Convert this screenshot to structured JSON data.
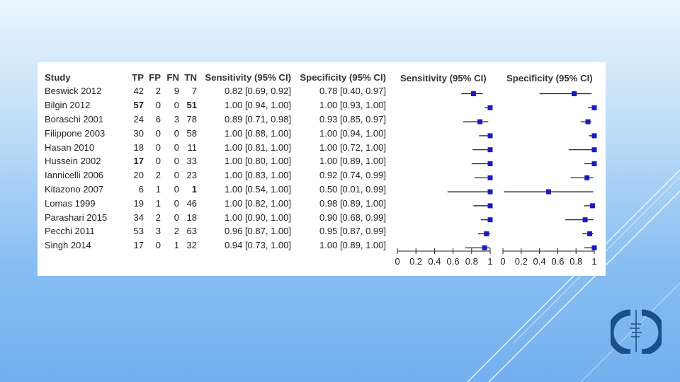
{
  "chart_data": {
    "type": "table",
    "subtype": "paired forest plot",
    "columns": [
      "Study",
      "TP",
      "FP",
      "FN",
      "TN",
      "Sensitivity (95% CI)",
      "Specificity (95% CI)"
    ],
    "plot_headers": [
      "Sensitivity (95% CI)",
      "Specificity (95% CI)"
    ],
    "axis_ticks": [
      "0",
      "0.2",
      "0.4",
      "0.6",
      "0.8",
      "1"
    ],
    "xlim": [
      0,
      1
    ],
    "rows": [
      {
        "study": "Beswick 2012",
        "tp": "42",
        "fp": "2",
        "fn": "9",
        "tn": "7",
        "sens_text": "0.82 [0.69, 0.92]",
        "spec_text": "0.78 [0.40, 0.97]",
        "sens": [
          0.82,
          0.69,
          0.92
        ],
        "spec": [
          0.78,
          0.4,
          0.97
        ]
      },
      {
        "study": "Bilgin 2012",
        "tp": "57",
        "fp": "0",
        "fn": "0",
        "tn": "51",
        "sens_text": "1.00 [0.94, 1.00]",
        "spec_text": "1.00 [0.93, 1.00]",
        "sens": [
          1.0,
          0.94,
          1.0
        ],
        "spec": [
          1.0,
          0.93,
          1.0
        ]
      },
      {
        "study": "Boraschi 2001",
        "tp": "24",
        "fp": "6",
        "fn": "3",
        "tn": "78",
        "sens_text": "0.89 [0.71, 0.98]",
        "spec_text": "0.93 [0.85, 0.97]",
        "sens": [
          0.89,
          0.71,
          0.98
        ],
        "spec": [
          0.93,
          0.85,
          0.97
        ]
      },
      {
        "study": "Filippone 2003",
        "tp": "30",
        "fp": "0",
        "fn": "0",
        "tn": "58",
        "sens_text": "1.00 [0.88, 1.00]",
        "spec_text": "1.00 [0.94, 1.00]",
        "sens": [
          1.0,
          0.88,
          1.0
        ],
        "spec": [
          1.0,
          0.94,
          1.0
        ]
      },
      {
        "study": "Hasan 2010",
        "tp": "18",
        "fp": "0",
        "fn": "0",
        "tn": "11",
        "sens_text": "1.00 [0.81, 1.00]",
        "spec_text": "1.00 [0.72, 1.00]",
        "sens": [
          1.0,
          0.81,
          1.0
        ],
        "spec": [
          1.0,
          0.72,
          1.0
        ]
      },
      {
        "study": "Hussein 2002",
        "tp": "17",
        "fp": "0",
        "fn": "0",
        "tn": "33",
        "sens_text": "1.00 [0.80, 1.00]",
        "spec_text": "1.00 [0.89, 1.00]",
        "sens": [
          1.0,
          0.8,
          1.0
        ],
        "spec": [
          1.0,
          0.89,
          1.0
        ]
      },
      {
        "study": "Iannicelli 2006",
        "tp": "20",
        "fp": "2",
        "fn": "0",
        "tn": "23",
        "sens_text": "1.00 [0.83, 1.00]",
        "spec_text": "0.92 [0.74, 0.99]",
        "sens": [
          1.0,
          0.83,
          1.0
        ],
        "spec": [
          0.92,
          0.74,
          0.99
        ]
      },
      {
        "study": "Kitazono 2007",
        "tp": "6",
        "fp": "1",
        "fn": "0",
        "tn": "1",
        "sens_text": "1.00 [0.54, 1.00]",
        "spec_text": "0.50 [0.01, 0.99]",
        "sens": [
          1.0,
          0.54,
          1.0
        ],
        "spec": [
          0.5,
          0.01,
          0.99
        ]
      },
      {
        "study": "Lomas 1999",
        "tp": "19",
        "fp": "1",
        "fn": "0",
        "tn": "46",
        "sens_text": "1.00 [0.82, 1.00]",
        "spec_text": "0.98 [0.89, 1.00]",
        "sens": [
          1.0,
          0.82,
          1.0
        ],
        "spec": [
          0.98,
          0.89,
          1.0
        ]
      },
      {
        "study": "Parashari 2015",
        "tp": "34",
        "fp": "2",
        "fn": "0",
        "tn": "18",
        "sens_text": "1.00 [0.90, 1.00]",
        "spec_text": "0.90 [0.68, 0.99]",
        "sens": [
          1.0,
          0.9,
          1.0
        ],
        "spec": [
          0.9,
          0.68,
          0.99
        ]
      },
      {
        "study": "Pecchi 2011",
        "tp": "53",
        "fp": "3",
        "fn": "2",
        "tn": "63",
        "sens_text": "0.96 [0.87, 1.00]",
        "spec_text": "0.95 [0.87, 0.99]",
        "sens": [
          0.96,
          0.87,
          1.0
        ],
        "spec": [
          0.95,
          0.87,
          0.99
        ]
      },
      {
        "study": "Singh 2014",
        "tp": "17",
        "fp": "0",
        "fn": "1",
        "tn": "32",
        "sens_text": "0.94 [0.73, 1.00]",
        "spec_text": "1.00 [0.89, 1.00]",
        "sens": [
          0.94,
          0.73,
          1.0
        ],
        "spec": [
          1.0,
          0.89,
          1.0
        ]
      }
    ]
  },
  "colors": {
    "marker": "#1a1ac0",
    "ci_line": "#111111",
    "deco_line": "#ffffff",
    "logo_blue": "#1a4f8c"
  },
  "logo_icon": "cochrane-logo-icon"
}
